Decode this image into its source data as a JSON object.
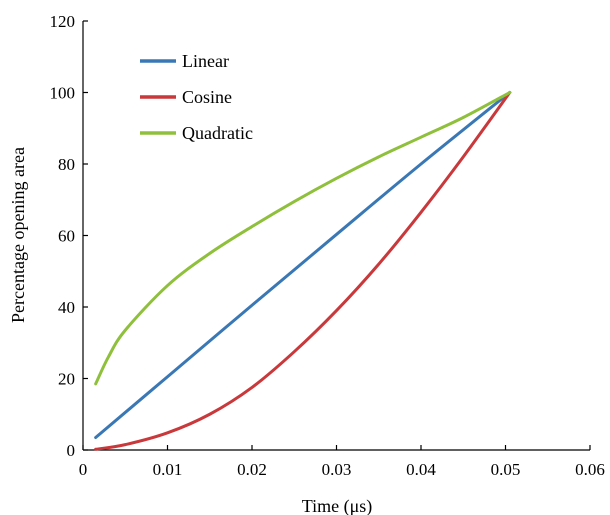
{
  "chart_data": {
    "type": "line",
    "title": "",
    "xlabel": "Time (μs)",
    "ylabel": "Percentage opening area",
    "xlim": [
      0,
      0.06
    ],
    "ylim": [
      0,
      120
    ],
    "x_ticks": [
      0,
      0.01,
      0.02,
      0.03,
      0.04,
      0.05,
      0.06
    ],
    "x_tick_labels": [
      "0",
      "0.01",
      "0.02",
      "0.03",
      "0.04",
      "0.05",
      "0.06"
    ],
    "y_ticks": [
      0,
      20,
      40,
      60,
      80,
      100,
      120
    ],
    "y_tick_labels": [
      "0",
      "20",
      "40",
      "60",
      "80",
      "100",
      "120"
    ],
    "grid": false,
    "legend_position": "top-left",
    "series": [
      {
        "name": "Linear",
        "color": "#3a78b5",
        "x": [
          0.0015,
          0.01,
          0.02,
          0.03,
          0.04,
          0.0505
        ],
        "y": [
          3.5,
          20.5,
          40.5,
          60.3,
          80.0,
          100.0
        ]
      },
      {
        "name": "Cosine",
        "color": "#c9383a",
        "x": [
          0.0015,
          0.005,
          0.01,
          0.015,
          0.02,
          0.025,
          0.03,
          0.035,
          0.04,
          0.045,
          0.0505
        ],
        "y": [
          0.2,
          1.5,
          4.8,
          10.0,
          17.5,
          27.5,
          39.0,
          52.0,
          66.5,
          82.0,
          100.0
        ]
      },
      {
        "name": "Quadratic",
        "color": "#8fc03c",
        "x": [
          0.0015,
          0.003,
          0.005,
          0.01,
          0.015,
          0.02,
          0.025,
          0.03,
          0.035,
          0.04,
          0.045,
          0.0505
        ],
        "y": [
          18.5,
          26.0,
          33.5,
          46.0,
          55.0,
          62.5,
          69.5,
          76.0,
          82.0,
          87.5,
          93.0,
          100.0
        ]
      }
    ]
  }
}
